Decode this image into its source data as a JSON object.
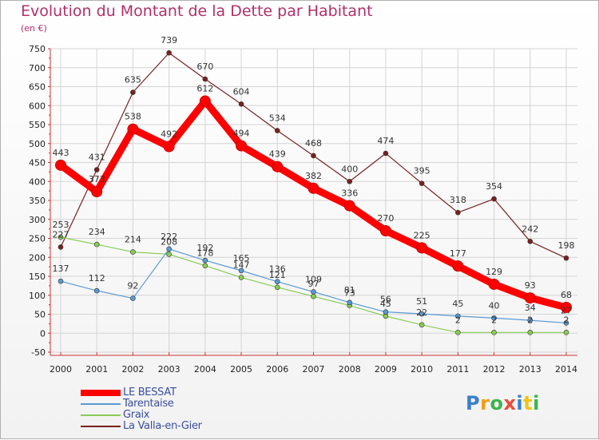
{
  "title": "Evolution du Montant de la Dette par Habitant",
  "subtitle": "(en €)",
  "logo": {
    "text": "Proxiti",
    "colors": [
      "#3a7fd0",
      "#f39c12",
      "#3cb44b",
      "#e74c3c",
      "#3a7fd0",
      "#f1c40f",
      "#3cb44b"
    ]
  },
  "chart_data": {
    "type": "line",
    "title": "Evolution du Montant de la Dette par Habitant",
    "ylabel": "(en €)",
    "x": [
      "2000",
      "2001",
      "2002",
      "2003",
      "2004",
      "2005",
      "2006",
      "2007",
      "2008",
      "2009",
      "2010",
      "2011",
      "2012",
      "2013",
      "2014"
    ],
    "ylim": [
      -50,
      750
    ],
    "yticks": [
      -50,
      0,
      50,
      100,
      150,
      200,
      250,
      300,
      350,
      400,
      450,
      500,
      550,
      600,
      650,
      700,
      750
    ],
    "grid": true,
    "legend": "bottom-left",
    "series": [
      {
        "name": "LE BESSAT",
        "color": "#ff0000",
        "values": [
          443,
          373,
          538,
          492,
          612,
          494,
          439,
          382,
          336,
          270,
          225,
          177,
          129,
          93,
          68
        ]
      },
      {
        "name": "Tarentaise",
        "color": "#5a9ad2",
        "values": [
          137,
          112,
          92,
          222,
          192,
          165,
          136,
          109,
          81,
          56,
          51,
          45,
          40,
          34,
          27
        ]
      },
      {
        "name": "Graix",
        "color": "#88cc55",
        "values": [
          253,
          234,
          214,
          208,
          178,
          147,
          121,
          97,
          73,
          45,
          22,
          2,
          2,
          2,
          2
        ]
      },
      {
        "name": "La Valla-en-Gier",
        "color": "#7a2020",
        "values": [
          227,
          431,
          635,
          739,
          670,
          604,
          534,
          468,
          400,
          474,
          395,
          318,
          354,
          242,
          198
        ]
      }
    ]
  }
}
